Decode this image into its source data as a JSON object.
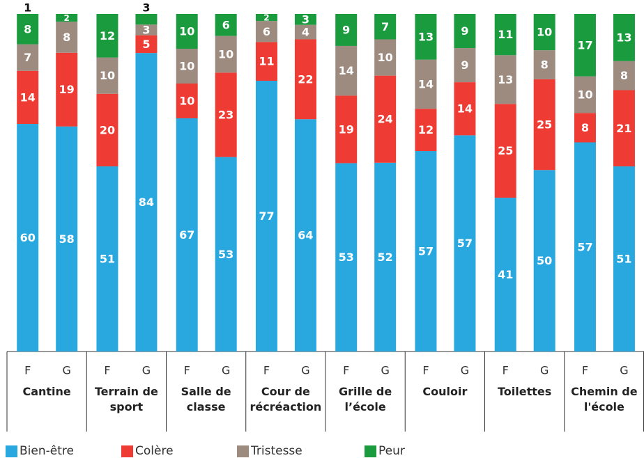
{
  "chart_data": {
    "type": "stacked-bar-100",
    "groups": [
      "Cantine",
      "Terrain de sport",
      "Salle de classe",
      "Cour de récréaction",
      "Grille de l’école",
      "Couloir",
      "Toilettes",
      "Chemin de l'école"
    ],
    "categories": [
      "F",
      "G",
      "F",
      "G",
      "F",
      "G",
      "F",
      "G",
      "F",
      "G",
      "F",
      "G",
      "F",
      "G",
      "F",
      "G"
    ],
    "series": [
      {
        "name": "Bien-être",
        "color": "#29a8e0",
        "values": [
          60,
          58,
          51,
          84,
          67,
          53,
          77,
          64,
          53,
          52,
          57,
          57,
          41,
          50,
          57,
          51
        ]
      },
      {
        "name": "Colère",
        "color": "#ee3b33",
        "values": [
          14,
          19,
          20,
          5,
          10,
          23,
          11,
          22,
          19,
          24,
          12,
          14,
          25,
          25,
          8,
          21
        ]
      },
      {
        "name": "Tristesse",
        "color": "#9e8b80",
        "values": [
          7,
          8,
          10,
          3,
          10,
          10,
          6,
          4,
          14,
          10,
          14,
          9,
          13,
          8,
          10,
          8
        ]
      },
      {
        "name": "Peur",
        "color": "#1a9c3e",
        "values": [
          8,
          2,
          12,
          3,
          10,
          6,
          2,
          3,
          9,
          7,
          13,
          9,
          11,
          10,
          17,
          13
        ]
      }
    ],
    "annotations": [
      "1"
    ]
  }
}
